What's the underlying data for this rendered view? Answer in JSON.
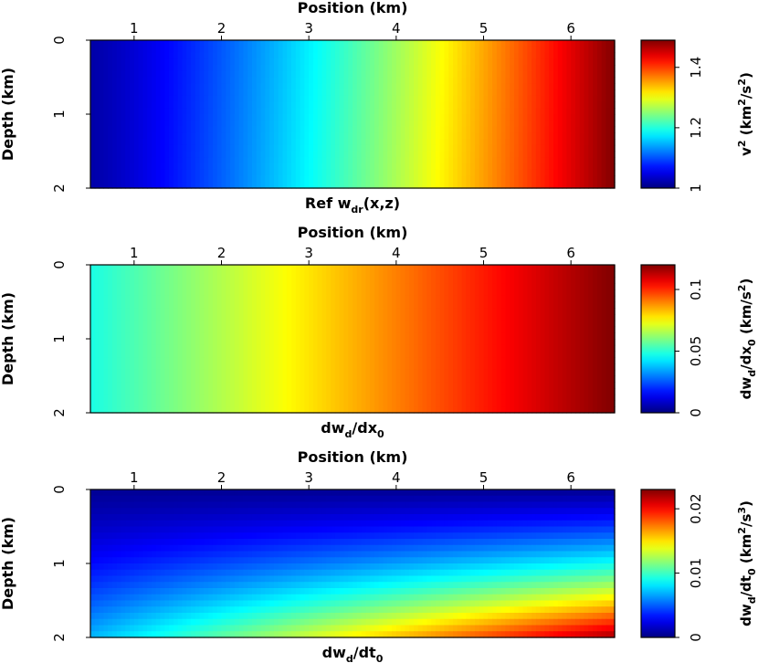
{
  "chart_data": [
    {
      "type": "heatmap",
      "title": "",
      "top_xlabel": "Position (km)",
      "ylabel": "Depth (km)",
      "bottom_caption": {
        "base": "Ref w",
        "sub": "dr",
        "rest": "(x,z)"
      },
      "xlim": [
        0.5,
        6.5
      ],
      "ylim": [
        0,
        2
      ],
      "x_ticks": [
        1,
        2,
        3,
        4,
        5,
        6
      ],
      "y_ticks": [
        0,
        1,
        2
      ],
      "field_description": "increases with position; nearly independent of depth",
      "range": [
        1.0,
        1.49
      ],
      "colormap": "jet",
      "colorbar": {
        "ticks": [
          1,
          1.2,
          1.4
        ],
        "tick_labels": [
          "1",
          "1.2",
          "1.4"
        ],
        "range": [
          1.0,
          1.49
        ],
        "label_parts": [
          {
            "t": "v",
            "s": "n"
          },
          {
            "t": "2",
            "s": "sup"
          },
          {
            "t": " (km",
            "s": "n"
          },
          {
            "t": "2",
            "s": "sup"
          },
          {
            "t": "/s",
            "s": "n"
          },
          {
            "t": "2",
            "s": "sup"
          },
          {
            "t": ")",
            "s": "n"
          }
        ]
      }
    },
    {
      "type": "heatmap",
      "title": "",
      "top_xlabel": "Position (km)",
      "ylabel": "Depth (km)",
      "bottom_caption": {
        "base": "dw",
        "sub": "d",
        "rest": "/dx",
        "sub2": "0"
      },
      "xlim": [
        0.5,
        6.5
      ],
      "ylim": [
        0,
        2
      ],
      "x_ticks": [
        1,
        2,
        3,
        4,
        5,
        6
      ],
      "y_ticks": [
        0,
        1,
        2
      ],
      "field_description": "increases linearly with position; independent of depth",
      "range": [
        0.0,
        0.12
      ],
      "colormap": "jet",
      "colorbar": {
        "ticks": [
          0,
          0.05,
          0.1
        ],
        "tick_labels": [
          "0",
          "0.05",
          "0.1"
        ],
        "range": [
          0.0,
          0.12
        ],
        "label_parts": [
          {
            "t": "dw",
            "s": "n"
          },
          {
            "t": "d",
            "s": "sub"
          },
          {
            "t": "/dx",
            "s": "n"
          },
          {
            "t": "0",
            "s": "sub"
          },
          {
            "t": " (km/s",
            "s": "n"
          },
          {
            "t": "2",
            "s": "sup"
          },
          {
            "t": ")",
            "s": "n"
          }
        ]
      }
    },
    {
      "type": "heatmap",
      "title": "",
      "top_xlabel": "Position (km)",
      "ylabel": "Depth (km)",
      "bottom_caption": {
        "base": "dw",
        "sub": "d",
        "rest": "/dt",
        "sub2": "0"
      },
      "xlim": [
        0.5,
        6.5
      ],
      "ylim": [
        0,
        2
      ],
      "x_ticks": [
        1,
        2,
        3,
        4,
        5,
        6
      ],
      "y_ticks": [
        0,
        1,
        2
      ],
      "field_description": "increases with depth and position; maximum at bottom right",
      "range": [
        0.0,
        0.023
      ],
      "colormap": "jet",
      "colorbar": {
        "ticks": [
          0,
          0.01,
          0.02
        ],
        "tick_labels": [
          "0",
          "0.01",
          "0.02"
        ],
        "range": [
          0.0,
          0.023
        ],
        "label_parts": [
          {
            "t": "dw",
            "s": "n"
          },
          {
            "t": "d",
            "s": "sub"
          },
          {
            "t": "/dt",
            "s": "n"
          },
          {
            "t": "0",
            "s": "sub"
          },
          {
            "t": " (km",
            "s": "n"
          },
          {
            "t": "2",
            "s": "sup"
          },
          {
            "t": "/s",
            "s": "n"
          },
          {
            "t": "3",
            "s": "sup"
          },
          {
            "t": ")",
            "s": "n"
          }
        ]
      }
    }
  ]
}
